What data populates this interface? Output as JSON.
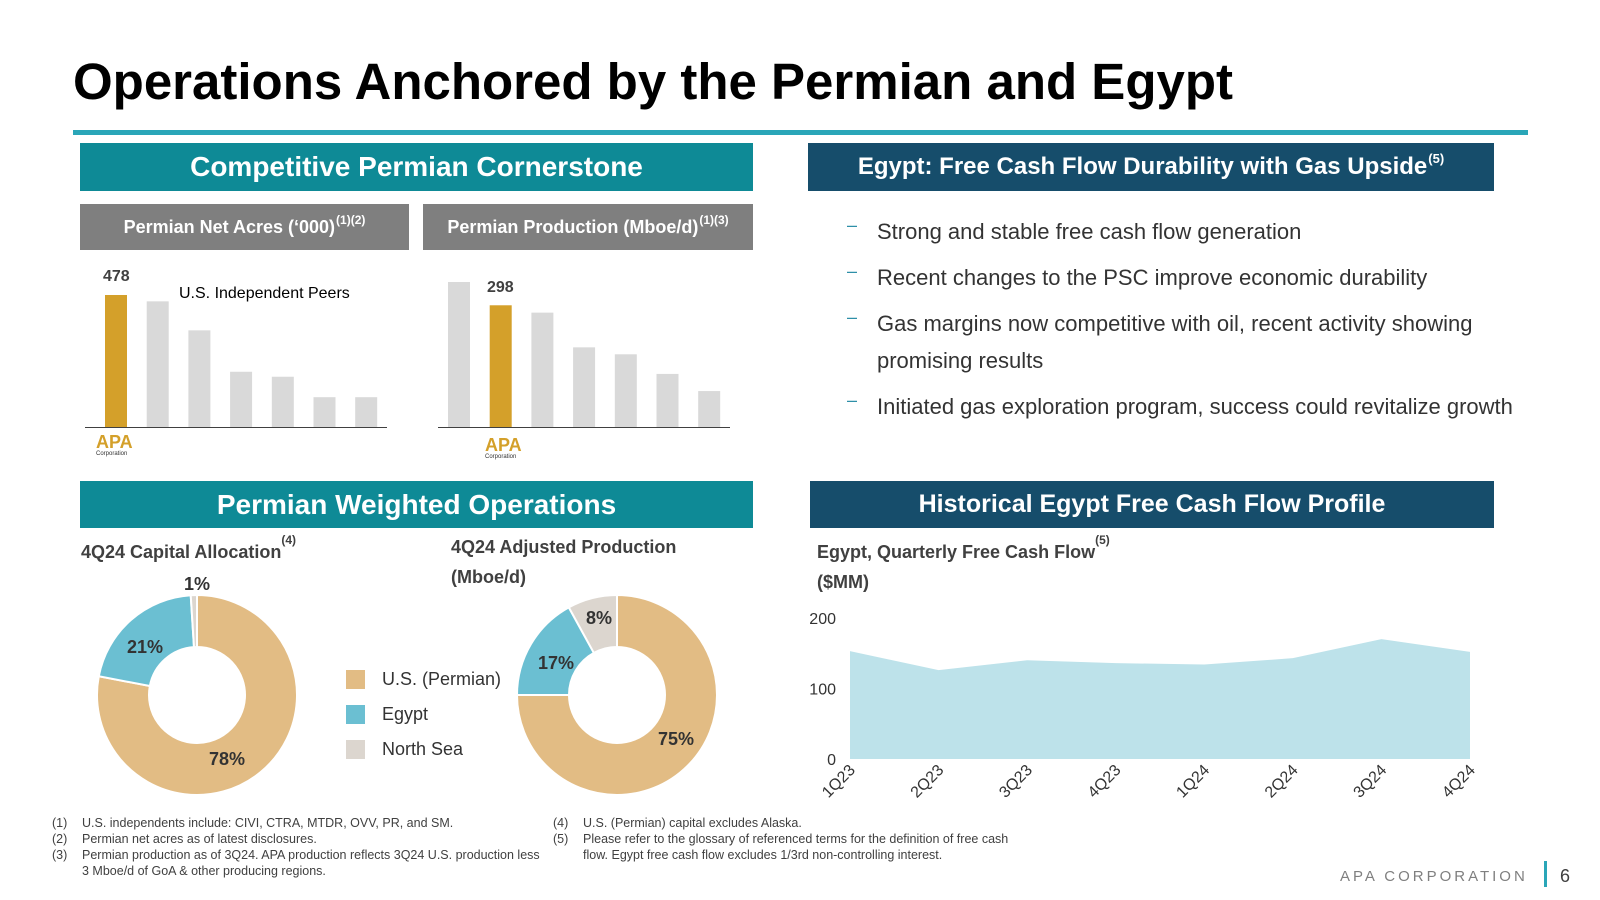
{
  "title": "Operations Anchored by the Permian and Egypt",
  "colors": {
    "teal": "#0e8a96",
    "navy": "#164d6b",
    "gray_band": "#7f7f7f",
    "gold": "#d4a02a",
    "bar_gray": "#d9d9d9",
    "pie_permian": "#e2bc84",
    "pie_egypt": "#6bbfd2",
    "pie_northsea": "#dcd6cf",
    "area_fill": "#bde2ea"
  },
  "permian_section": {
    "header": "Competitive Permian Cornerstone",
    "acres": {
      "label": "Permian Net Acres (‘000)",
      "sup": "(1)(2)",
      "highlight_value": "478",
      "peers_label": "U.S. Independent Peers",
      "logo": "APA",
      "logo_sub": "Corporation"
    },
    "production": {
      "label": "Permian Production (Mboe/d)",
      "sup": "(1)(3)",
      "highlight_value": "298",
      "logo": "APA",
      "logo_sub": "Corporation"
    }
  },
  "egypt_section": {
    "header": "Egypt: Free Cash Flow Durability with Gas Upside",
    "sup": "(5)",
    "bullets": [
      "Strong and stable free cash flow generation",
      "Recent changes to the PSC improve economic durability",
      "Gas margins now competitive with oil, recent activity showing promising results",
      "Initiated gas exploration program, success could revitalize growth"
    ]
  },
  "operations_section": {
    "header": "Permian Weighted Operations",
    "capital_title": "4Q24 Capital Allocation",
    "capital_sup": "(4)",
    "production_title": "4Q24 Adjusted Production (Mboe/d)",
    "legend": [
      "U.S. (Permian)",
      "Egypt",
      "North Sea"
    ]
  },
  "fcf_section": {
    "header": "Historical Egypt Free Cash Flow Profile",
    "chart_title_line1": "Egypt, Quarterly Free Cash Flow",
    "chart_title_sup": "(5)",
    "chart_title_line2": "($MM)"
  },
  "footnotes_left": [
    {
      "num": "(1)",
      "text": "U.S. independents include: CIVI, CTRA, MTDR, OVV, PR, and SM."
    },
    {
      "num": "(2)",
      "text": "Permian net acres as of latest disclosures."
    },
    {
      "num": "(3)",
      "text": "Permian production as of 3Q24. APA production reflects 3Q24 U.S. production less 3 Mboe/d of GoA & other producing regions."
    }
  ],
  "footnotes_right": [
    {
      "num": "(4)",
      "text": "U.S. (Permian) capital excludes Alaska."
    },
    {
      "num": "(5)",
      "text": "Please refer to the glossary of referenced terms for the definition of free cash flow. Egypt free cash flow excludes 1/3rd non-controlling interest."
    }
  ],
  "brand": "APA CORPORATION",
  "page_number": "6",
  "chart_data": [
    {
      "type": "bar",
      "categories": [
        "APA",
        "",
        "",
        "",
        "",
        "",
        ""
      ],
      "values": [
        478,
        455,
        350,
        200,
        182,
        108,
        108
      ],
      "highlight_index": 0,
      "data_labels": [
        "478"
      ],
      "ylim": [
        0,
        478
      ]
    },
    {
      "type": "bar",
      "categories": [
        "",
        "APA",
        "",
        "",
        "",
        "",
        ""
      ],
      "values": [
        355,
        298,
        280,
        195,
        178,
        130,
        88
      ],
      "highlight_index": 1,
      "data_labels": [
        "298"
      ],
      "ylim": [
        0,
        355
      ]
    },
    {
      "type": "pie",
      "title": "4Q24 Capital Allocation",
      "labels": [
        "U.S. (Permian)",
        "Egypt",
        "North Sea"
      ],
      "values": [
        78,
        21,
        1
      ],
      "value_labels": [
        "78%",
        "21%",
        "1%"
      ]
    },
    {
      "type": "pie",
      "title": "4Q24 Adjusted Production (Mboe/d)",
      "labels": [
        "U.S. (Permian)",
        "Egypt",
        "North Sea"
      ],
      "values": [
        75,
        17,
        8
      ],
      "value_labels": [
        "75%",
        "17%",
        "8%"
      ]
    },
    {
      "type": "area",
      "title": "Egypt, Quarterly Free Cash Flow ($MM)",
      "x": [
        "1Q23",
        "2Q23",
        "3Q23",
        "4Q23",
        "1Q24",
        "2Q24",
        "3Q24",
        "4Q24"
      ],
      "values": [
        153,
        126,
        140,
        136,
        134,
        143,
        170,
        152
      ],
      "yticks": [
        0,
        100,
        200
      ],
      "ylim": [
        0,
        200
      ]
    }
  ]
}
